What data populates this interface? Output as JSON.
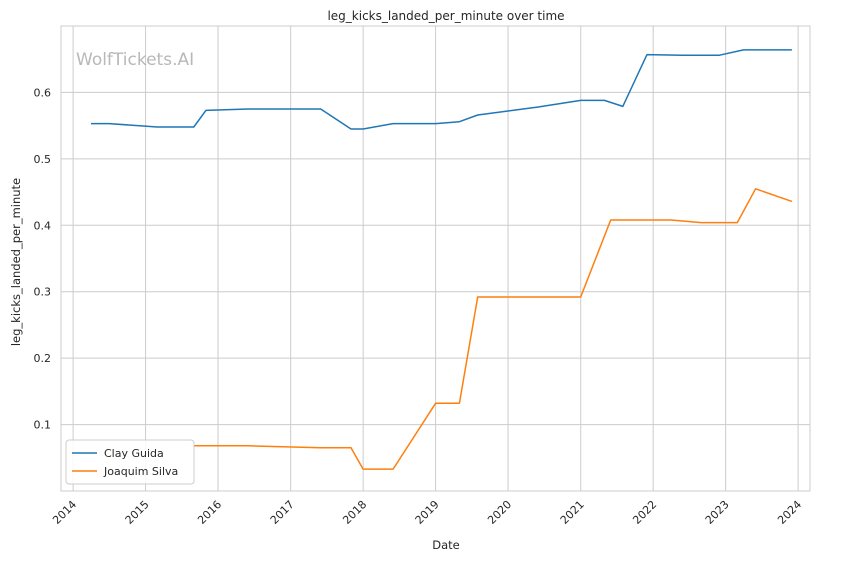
{
  "watermark": "WolfTickets.AI",
  "chart_data": {
    "type": "line",
    "title": "leg_kicks_landed_per_minute over time",
    "xlabel": "Date",
    "ylabel": "leg_kicks_landed_per_minute",
    "x_ticks": [
      "2014",
      "2015",
      "2016",
      "2017",
      "2018",
      "2019",
      "2020",
      "2021",
      "2022",
      "2023",
      "2024"
    ],
    "y_ticks": [
      0.1,
      0.2,
      0.3,
      0.4,
      0.5,
      0.6
    ],
    "xlim": [
      "2013-11-01",
      "2024-03-01"
    ],
    "ylim": [
      0.0,
      0.7
    ],
    "grid": true,
    "legend_position": "lower-left",
    "series": [
      {
        "name": "Clay Guida",
        "color": "#1f77b4",
        "points": [
          [
            "2014-04-01",
            0.553
          ],
          [
            "2014-07-01",
            0.553
          ],
          [
            "2015-03-01",
            0.548
          ],
          [
            "2015-09-01",
            0.548
          ],
          [
            "2015-11-01",
            0.573
          ],
          [
            "2016-06-01",
            0.575
          ],
          [
            "2017-06-01",
            0.575
          ],
          [
            "2017-11-01",
            0.545
          ],
          [
            "2018-01-01",
            0.545
          ],
          [
            "2018-06-01",
            0.553
          ],
          [
            "2019-01-01",
            0.553
          ],
          [
            "2019-05-01",
            0.556
          ],
          [
            "2019-08-01",
            0.566
          ],
          [
            "2020-06-01",
            0.578
          ],
          [
            "2021-01-01",
            0.588
          ],
          [
            "2021-05-01",
            0.588
          ],
          [
            "2021-08-01",
            0.579
          ],
          [
            "2021-12-01",
            0.657
          ],
          [
            "2022-06-01",
            0.656
          ],
          [
            "2022-12-01",
            0.656
          ],
          [
            "2023-04-01",
            0.664
          ],
          [
            "2023-12-01",
            0.664
          ]
        ]
      },
      {
        "name": "Joaquim Silva",
        "color": "#ff7f0e",
        "points": [
          [
            "2015-09-01",
            0.068
          ],
          [
            "2016-06-01",
            0.068
          ],
          [
            "2017-06-01",
            0.065
          ],
          [
            "2017-11-01",
            0.065
          ],
          [
            "2018-01-01",
            0.033
          ],
          [
            "2018-06-01",
            0.033
          ],
          [
            "2019-01-01",
            0.132
          ],
          [
            "2019-05-01",
            0.132
          ],
          [
            "2019-08-01",
            0.292
          ],
          [
            "2021-01-01",
            0.292
          ],
          [
            "2021-06-01",
            0.408
          ],
          [
            "2022-04-01",
            0.408
          ],
          [
            "2022-09-01",
            0.404
          ],
          [
            "2023-03-01",
            0.404
          ],
          [
            "2023-06-01",
            0.455
          ],
          [
            "2023-12-01",
            0.436
          ]
        ]
      }
    ]
  }
}
